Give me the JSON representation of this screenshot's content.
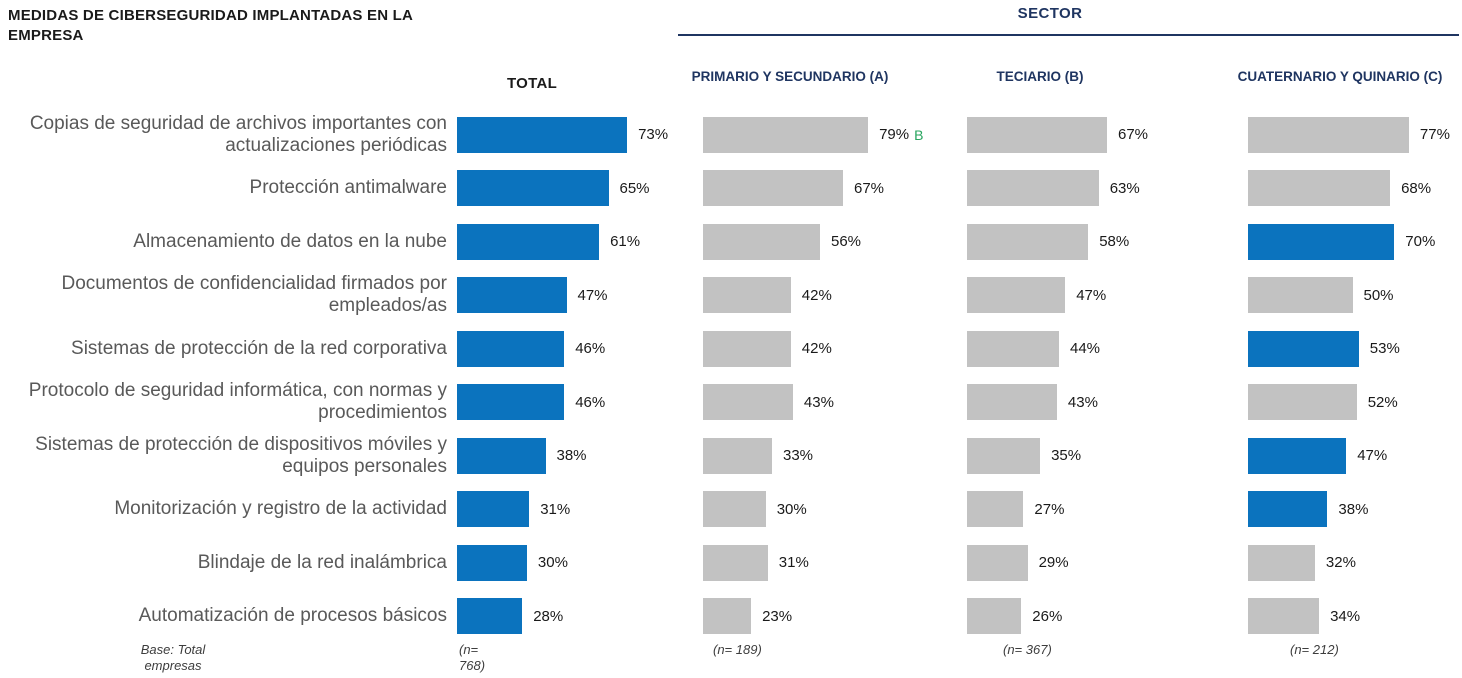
{
  "title": "MEDIDAS DE CIBERSEGURIDAD IMPLANTADAS EN LA EMPRESA",
  "chart_data": {
    "type": "bar",
    "orientation": "horizontal",
    "unit": "%",
    "xlim": [
      0,
      100
    ],
    "title": "MEDIDAS DE CIBERSEGURIDAD IMPLANTADAS EN LA EMPRESA",
    "group_header": "SECTOR",
    "base_note": "Base: Total empresas",
    "categories": [
      "Copias de seguridad de archivos importantes con actualizaciones periódicas",
      "Protección antimalware",
      "Almacenamiento de datos en la nube",
      "Documentos de confidencialidad firmados por empleados/as",
      "Sistemas de protección de la red corporativa",
      "Protocolo de seguridad informática, con normas y procedimientos",
      "Sistemas de protección de dispositivos móviles y equipos personales",
      "Monitorización y registro de la actividad",
      "Blindaje de la red inalámbrica",
      "Automatización de procesos básicos"
    ],
    "series": [
      {
        "name": "TOTAL",
        "base": "(n= 768)",
        "values": [
          73,
          65,
          61,
          47,
          46,
          46,
          38,
          31,
          30,
          28
        ]
      },
      {
        "name": "PRIMARIO Y SECUNDARIO (A)",
        "base": "(n= 189)",
        "values": [
          79,
          67,
          56,
          42,
          42,
          43,
          33,
          30,
          31,
          23
        ],
        "sig_markers": [
          "B",
          "",
          "",
          "",
          "",
          "",
          "",
          "",
          "",
          ""
        ]
      },
      {
        "name": "TECIARIO (B)",
        "base": "(n= 367)",
        "values": [
          67,
          63,
          58,
          47,
          44,
          43,
          35,
          27,
          29,
          26
        ]
      },
      {
        "name": "CUATERNARIO Y QUINARIO (C)",
        "base": "(n= 212)",
        "values": [
          77,
          68,
          70,
          50,
          53,
          52,
          47,
          38,
          32,
          34
        ],
        "highlighted": [
          false,
          false,
          true,
          false,
          true,
          false,
          true,
          true,
          false,
          false
        ]
      }
    ],
    "colors": {
      "total_bar": "#0B73BE",
      "sector_bar": "#C2C2C2",
      "highlight_bar": "#0B73BE",
      "sig_marker": "#28A55F",
      "header_navy": "#1F3561",
      "label_gray": "#595959",
      "value_black": "#1A1A1A"
    },
    "legend_position": "none",
    "grid": false
  }
}
